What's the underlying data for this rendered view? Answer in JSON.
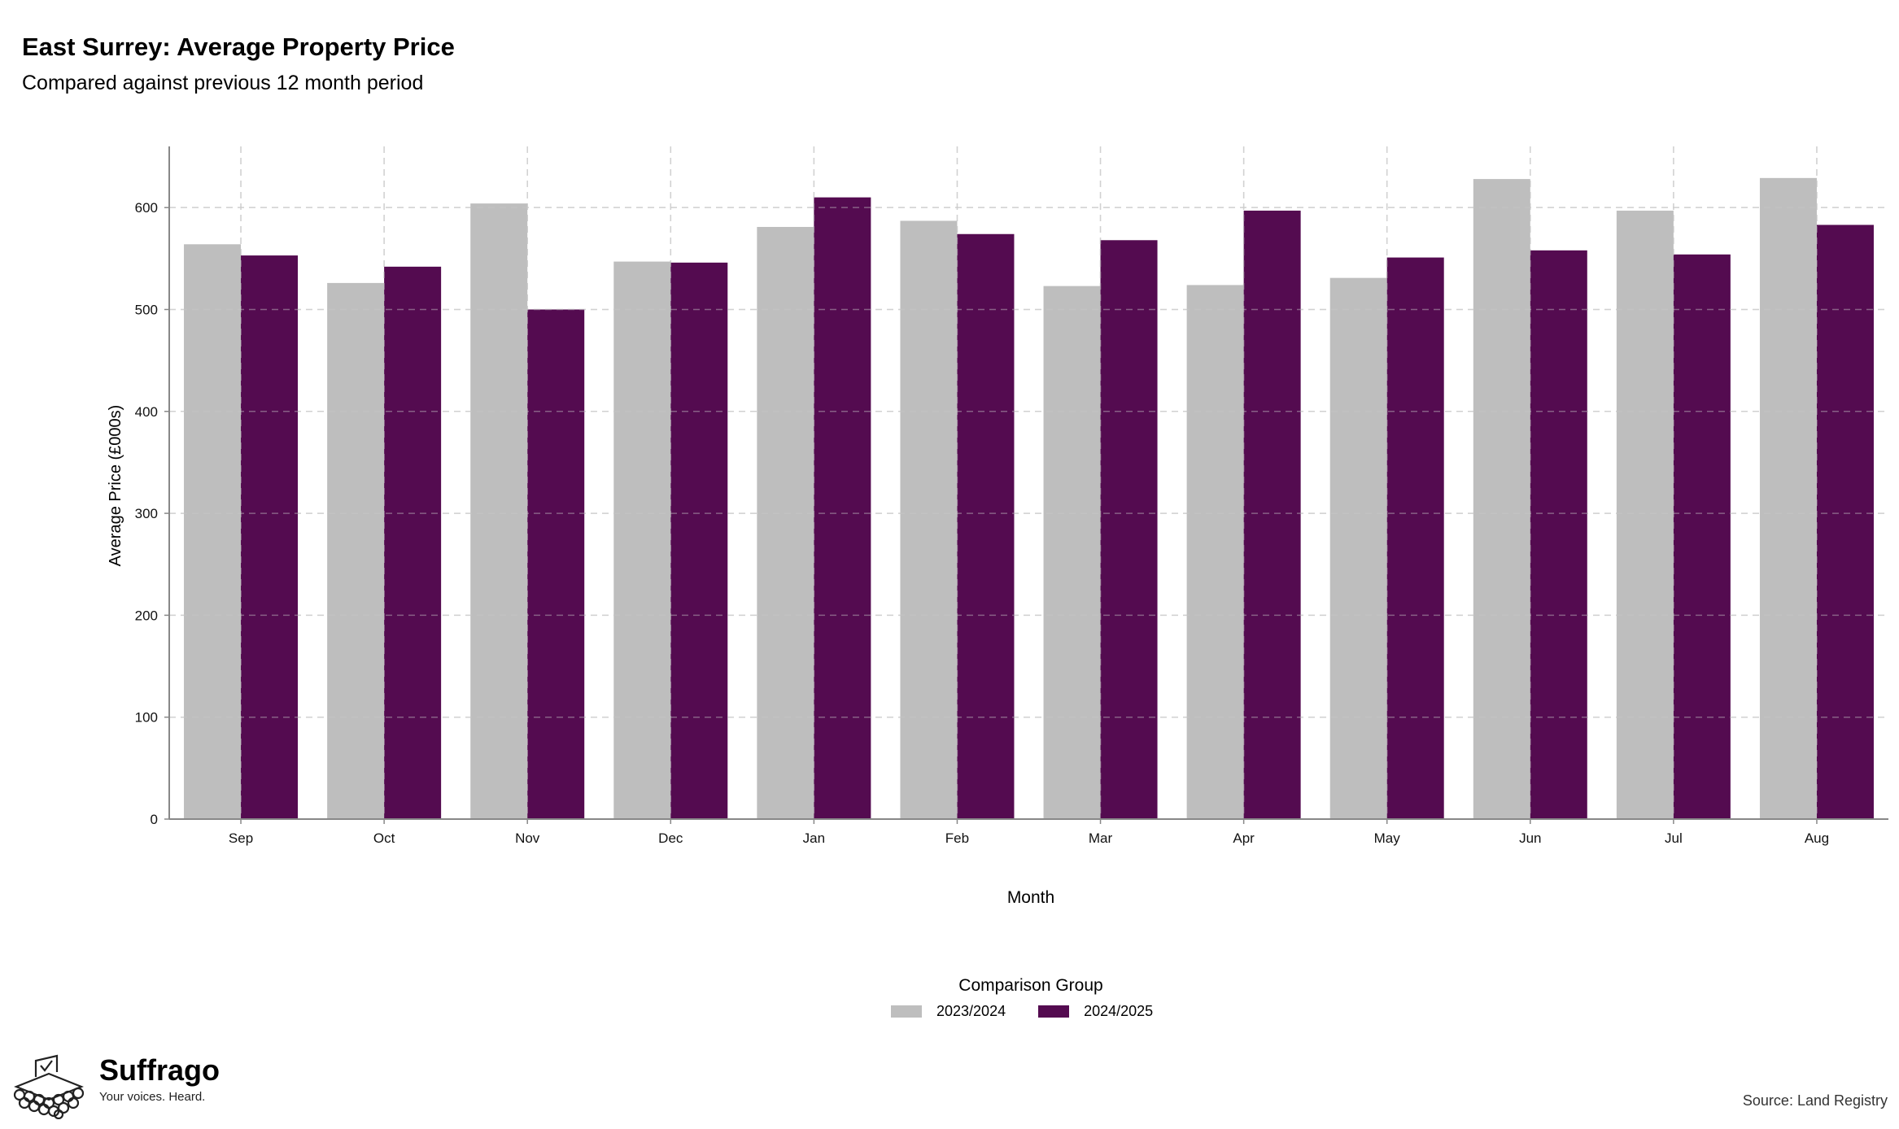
{
  "title": "East Surrey: Average Property Price",
  "subtitle": "Compared against previous 12 month period",
  "chart_data": {
    "type": "bar",
    "categories": [
      "Sep",
      "Oct",
      "Nov",
      "Dec",
      "Jan",
      "Feb",
      "Mar",
      "Apr",
      "May",
      "Jun",
      "Jul",
      "Aug"
    ],
    "series": [
      {
        "name": "2023/2024",
        "color": "#bebebe",
        "values": [
          564,
          526,
          604,
          547,
          581,
          587,
          523,
          524,
          531,
          628,
          597,
          629
        ]
      },
      {
        "name": "2024/2025",
        "color": "#540b50",
        "values": [
          553,
          542,
          500,
          546,
          610,
          574,
          568,
          597,
          551,
          558,
          554,
          583
        ]
      }
    ],
    "xlabel": "Month",
    "ylabel": "Average Price (£000s)",
    "ylim": [
      0,
      660
    ],
    "yticks": [
      0,
      100,
      200,
      300,
      400,
      500,
      600
    ],
    "grid": true,
    "legend_title": "Comparison Group",
    "legend_position": "bottom"
  },
  "brand": {
    "name": "Suffrago",
    "tagline": "Your voices. Heard."
  },
  "source": "Source: Land Registry"
}
